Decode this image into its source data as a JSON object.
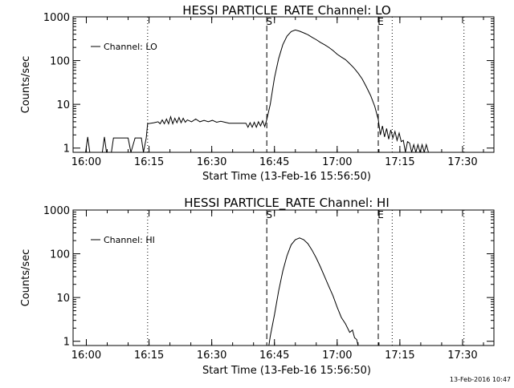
{
  "footer": {
    "timestamp": "13-Feb-2016 10:47"
  },
  "chart_data": [
    {
      "type": "line",
      "title": "HESSI PARTICLE_RATE Channel: LO",
      "xlabel": "Start Time (13-Feb-16 15:56:50)",
      "ylabel": "Counts/sec",
      "y_scale": "log",
      "ylim": [
        0.8,
        1000
      ],
      "xlim": [
        "15:56:50",
        "17:37:30"
      ],
      "xticks": [
        "16:00",
        "16:15",
        "16:30",
        "16:45",
        "17:00",
        "17:15",
        "17:30"
      ],
      "yticks": [
        "1",
        "10",
        "100",
        "1000"
      ],
      "legend": {
        "position": "top-left",
        "entries": [
          "Channel: LO"
        ]
      },
      "markers": [
        {
          "label": "S",
          "time": "16:43:10",
          "style": "dashed"
        },
        {
          "label": "E",
          "time": "17:09:50",
          "style": "dashed"
        }
      ],
      "reference_lines": [
        {
          "time": "16:14:40",
          "style": "dotted"
        },
        {
          "time": "17:13:10",
          "style": "dotted"
        },
        {
          "time": "17:30:20",
          "style": "dotted"
        }
      ],
      "series": [
        {
          "x": [
            "15:56:50",
            "15:59:50",
            "16:00:20",
            "16:00:50",
            "16:03:50",
            "16:04:20",
            "16:04:50",
            "16:06:00",
            "16:06:30",
            "16:07:00",
            "16:10:00",
            "16:10:40",
            "16:11:40",
            "16:12:00",
            "16:13:10",
            "16:13:40",
            "16:14:20",
            "16:14:40",
            "16:16:10",
            "16:17:10",
            "16:17:40",
            "16:18:10",
            "16:18:40",
            "16:19:10",
            "16:19:40",
            "16:20:10",
            "16:20:40",
            "16:21:10",
            "16:21:40",
            "16:22:10",
            "16:22:40",
            "16:23:10",
            "16:23:40",
            "16:24:10",
            "16:25:10",
            "16:26:10",
            "16:27:10",
            "16:28:10",
            "16:29:10",
            "16:30:10",
            "16:31:10",
            "16:32:10",
            "16:33:10",
            "16:34:10",
            "16:35:10",
            "16:36:10",
            "16:37:10",
            "16:38:10",
            "16:38:40",
            "16:39:10",
            "16:39:40",
            "16:40:10",
            "16:40:40",
            "16:41:10",
            "16:41:40",
            "16:42:10",
            "16:42:40",
            "16:43:10",
            "16:44:00",
            "16:45:00",
            "16:46:00",
            "16:47:00",
            "16:48:00",
            "16:49:00",
            "16:50:00",
            "16:51:00",
            "16:52:00",
            "16:53:00",
            "16:54:00",
            "16:55:00",
            "16:56:00",
            "16:57:00",
            "16:58:00",
            "16:59:00",
            "17:00:00",
            "17:01:00",
            "17:02:00",
            "17:03:00",
            "17:04:00",
            "17:05:00",
            "17:06:00",
            "17:07:00",
            "17:08:00",
            "17:09:00",
            "17:09:50",
            "17:10:20",
            "17:10:50",
            "17:11:20",
            "17:11:50",
            "17:12:20",
            "17:12:50",
            "17:13:20",
            "17:13:50",
            "17:14:20",
            "17:14:50",
            "17:15:20",
            "17:15:50",
            "17:16:20",
            "17:16:50",
            "17:17:20",
            "17:17:50",
            "17:18:20",
            "17:18:50",
            "17:19:20",
            "17:19:50",
            "17:20:20",
            "17:20:50",
            "17:21:20",
            "17:21:50"
          ],
          "y": [
            0.8,
            0.8,
            1.8,
            0.8,
            0.8,
            1.8,
            0.8,
            0.8,
            1.7,
            1.7,
            1.7,
            0.8,
            1.7,
            1.7,
            1.7,
            0.8,
            1.7,
            3.6,
            3.8,
            4.0,
            3.6,
            4.4,
            3.6,
            4.6,
            3.6,
            5.2,
            3.6,
            4.8,
            3.8,
            5.0,
            3.8,
            4.8,
            3.9,
            4.4,
            4.0,
            4.6,
            4.0,
            4.3,
            4.0,
            4.3,
            3.9,
            4.1,
            3.9,
            3.7,
            3.7,
            3.7,
            3.7,
            3.7,
            3.0,
            3.8,
            3.0,
            3.9,
            3.0,
            4.0,
            3.2,
            4.2,
            3.1,
            4.5,
            10,
            40,
            110,
            230,
            360,
            460,
            500,
            470,
            430,
            390,
            340,
            300,
            260,
            230,
            200,
            170,
            140,
            120,
            105,
            85,
            68,
            52,
            38,
            25,
            16,
            9,
            4.5,
            2.0,
            3.2,
            1.8,
            2.8,
            1.6,
            2.6,
            1.7,
            2.4,
            1.5,
            2.2,
            1.4,
            1.5,
            0.8,
            1.4,
            1.3,
            0.8,
            1.2,
            0.8,
            1.2,
            0.8,
            1.2,
            0.8,
            1.2,
            0.8
          ]
        }
      ]
    },
    {
      "type": "line",
      "title": "HESSI PARTICLE_RATE Channel: HI",
      "xlabel": "Start Time (13-Feb-16 15:56:50)",
      "ylabel": "Counts/sec",
      "y_scale": "log",
      "ylim": [
        0.8,
        1000
      ],
      "xlim": [
        "15:56:50",
        "17:37:30"
      ],
      "xticks": [
        "16:00",
        "16:15",
        "16:30",
        "16:45",
        "17:00",
        "17:15",
        "17:30"
      ],
      "yticks": [
        "1",
        "10",
        "100",
        "1000"
      ],
      "legend": {
        "position": "top-left",
        "entries": [
          "Channel: HI"
        ]
      },
      "markers": [
        {
          "label": "S",
          "time": "16:43:10",
          "style": "dashed"
        },
        {
          "label": "E",
          "time": "17:09:50",
          "style": "dashed"
        }
      ],
      "reference_lines": [
        {
          "time": "16:14:40",
          "style": "dotted"
        },
        {
          "time": "17:13:10",
          "style": "dotted"
        },
        {
          "time": "17:30:20",
          "style": "dotted"
        }
      ],
      "series": [
        {
          "x": [
            "16:43:40",
            "16:44:00",
            "16:45:00",
            "16:46:00",
            "16:47:00",
            "16:48:00",
            "16:49:00",
            "16:50:00",
            "16:51:00",
            "16:52:00",
            "16:53:00",
            "16:54:00",
            "16:55:00",
            "16:56:00",
            "16:57:00",
            "16:58:00",
            "16:59:00",
            "17:00:00",
            "17:01:00",
            "17:02:00",
            "17:03:00",
            "17:03:40",
            "17:04:10",
            "17:04:40",
            "17:05:00"
          ],
          "y": [
            0.8,
            1.3,
            4,
            14,
            40,
            90,
            160,
            210,
            230,
            210,
            170,
            120,
            80,
            50,
            30,
            18,
            11,
            6,
            3.5,
            2.5,
            1.6,
            1.8,
            1.2,
            1.1,
            0.8
          ]
        }
      ]
    }
  ]
}
